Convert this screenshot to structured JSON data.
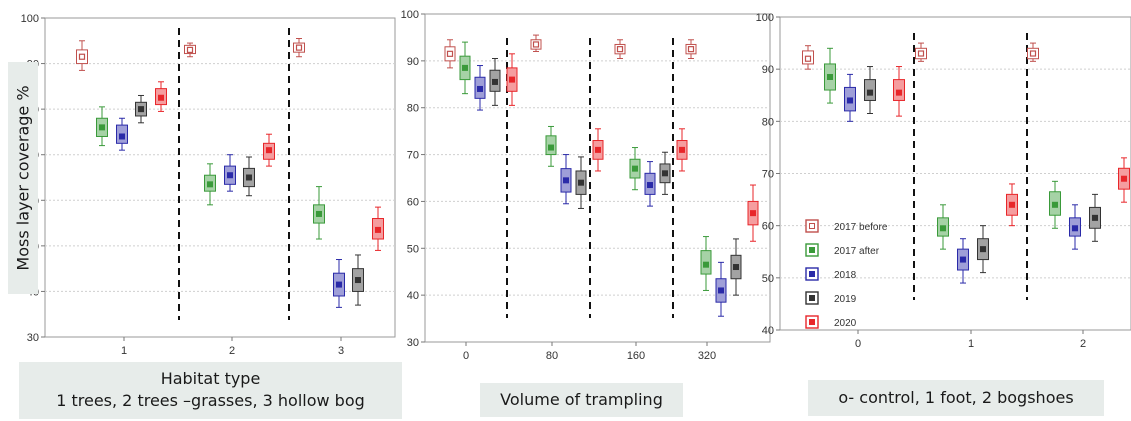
{
  "y_axis_label": "Moss layer coverage %",
  "panel_labels": {
    "habitat_line1": "Habitat type",
    "habitat_line2": "1 trees, 2 trees –grasses, 3 hollow bog",
    "trampling": "Volume of trampling",
    "shoes": "o- control, 1 foot, 2 bogshoes"
  },
  "colors": {
    "2017 before": "#c0504d",
    "2017 after": "#3a9a3a",
    "2018": "#2a2aa8",
    "2019": "#333333",
    "2020": "#e8262a"
  },
  "chart_data": [
    {
      "type": "box",
      "categories": [
        "1",
        "2",
        "3"
      ],
      "ylim": [
        30,
        100
      ],
      "yticks": [
        30,
        40,
        50,
        60,
        70,
        80,
        90,
        100
      ],
      "grid": "horizontal",
      "series": [
        {
          "name": "2017 before",
          "values": [
            {
              "mean": 91.5,
              "q1": 90,
              "q3": 93,
              "lo": 88.5,
              "hi": 95
            },
            {
              "mean": 93,
              "q1": 92.2,
              "q3": 94,
              "lo": 91.5,
              "hi": 94.5
            },
            {
              "mean": 93.5,
              "q1": 92.5,
              "q3": 94.5,
              "lo": 91.5,
              "hi": 95.5
            }
          ]
        },
        {
          "name": "2017 after",
          "values": [
            {
              "mean": 76,
              "q1": 74,
              "q3": 78,
              "lo": 72,
              "hi": 80.5
            },
            {
              "mean": 63.5,
              "q1": 62,
              "q3": 65.5,
              "lo": 59,
              "hi": 68
            },
            {
              "mean": 57,
              "q1": 55,
              "q3": 59,
              "lo": 51.5,
              "hi": 63
            }
          ]
        },
        {
          "name": "2018",
          "values": [
            {
              "mean": 74,
              "q1": 72.5,
              "q3": 76.5,
              "lo": 71,
              "hi": 78
            },
            {
              "mean": 65.5,
              "q1": 63.5,
              "q3": 67.5,
              "lo": 62,
              "hi": 70
            },
            {
              "mean": 41.5,
              "q1": 39,
              "q3": 44,
              "lo": 36.5,
              "hi": 47
            }
          ]
        },
        {
          "name": "2019",
          "values": [
            {
              "mean": 80,
              "q1": 78.5,
              "q3": 81.5,
              "lo": 77,
              "hi": 83
            },
            {
              "mean": 65,
              "q1": 63,
              "q3": 67,
              "lo": 61,
              "hi": 69.5
            },
            {
              "mean": 42.5,
              "q1": 40,
              "q3": 45,
              "lo": 37,
              "hi": 48
            }
          ]
        },
        {
          "name": "2020",
          "values": [
            {
              "mean": 82.5,
              "q1": 81,
              "q3": 84.5,
              "lo": 79.5,
              "hi": 86
            },
            {
              "mean": 71,
              "q1": 69,
              "q3": 72.5,
              "lo": 67.5,
              "hi": 74.5
            },
            {
              "mean": 53.5,
              "q1": 51.5,
              "q3": 56,
              "lo": 49,
              "hi": 58.5
            }
          ]
        }
      ]
    },
    {
      "type": "box",
      "categories": [
        "0",
        "80",
        "160",
        "320"
      ],
      "ylim": [
        30,
        100
      ],
      "yticks": [
        30,
        40,
        50,
        60,
        70,
        80,
        90,
        100
      ],
      "grid": "horizontal",
      "series": [
        {
          "name": "2017 before",
          "values": [
            {
              "mean": 91.5,
              "q1": 90,
              "q3": 93,
              "lo": 88.5,
              "hi": 94.5
            },
            {
              "mean": 93.5,
              "q1": 92.5,
              "q3": 94.5,
              "lo": 92,
              "hi": 95.5
            },
            {
              "mean": 92.5,
              "q1": 91.5,
              "q3": 93.5,
              "lo": 90.5,
              "hi": 94.5
            },
            {
              "mean": 92.5,
              "q1": 91.5,
              "q3": 93.5,
              "lo": 90.5,
              "hi": 94.5
            }
          ]
        },
        {
          "name": "2017 after",
          "values": [
            {
              "mean": 88.5,
              "q1": 86,
              "q3": 91,
              "lo": 83,
              "hi": 94
            },
            {
              "mean": 71.5,
              "q1": 70,
              "q3": 74,
              "lo": 67.5,
              "hi": 76
            },
            {
              "mean": 67,
              "q1": 65,
              "q3": 69,
              "lo": 62.5,
              "hi": 71.5
            },
            {
              "mean": 46.5,
              "q1": 44.5,
              "q3": 49.5,
              "lo": 41,
              "hi": 52.5
            }
          ]
        },
        {
          "name": "2018",
          "values": [
            {
              "mean": 84,
              "q1": 82,
              "q3": 86.5,
              "lo": 79.5,
              "hi": 89
            },
            {
              "mean": 64.5,
              "q1": 62,
              "q3": 67,
              "lo": 59.5,
              "hi": 70
            },
            {
              "mean": 63.5,
              "q1": 61.5,
              "q3": 66,
              "lo": 59,
              "hi": 68.5
            },
            {
              "mean": 41,
              "q1": 38.5,
              "q3": 43.5,
              "lo": 35.5,
              "hi": 47
            }
          ]
        },
        {
          "name": "2019",
          "values": [
            {
              "mean": 85.5,
              "q1": 83.5,
              "q3": 88,
              "lo": 80.5,
              "hi": 90.5
            },
            {
              "mean": 64,
              "q1": 61.5,
              "q3": 66.5,
              "lo": 58.5,
              "hi": 69.5
            },
            {
              "mean": 66,
              "q1": 64,
              "q3": 68,
              "lo": 61.5,
              "hi": 70.5
            },
            {
              "mean": 46,
              "q1": 43.5,
              "q3": 48.5,
              "lo": 40,
              "hi": 52
            }
          ]
        },
        {
          "name": "2020",
          "values": [
            {
              "mean": 86,
              "q1": 83.5,
              "q3": 88.5,
              "lo": 80.5,
              "hi": 91.5
            },
            {
              "mean": 71,
              "q1": 69,
              "q3": 73,
              "lo": 66.5,
              "hi": 75.5
            },
            {
              "mean": 71,
              "q1": 69,
              "q3": 73,
              "lo": 66.5,
              "hi": 75.5
            },
            {
              "mean": 57.5,
              "q1": 55,
              "q3": 60,
              "lo": 51.5,
              "hi": 63.5
            }
          ]
        }
      ]
    },
    {
      "type": "box",
      "categories": [
        "0",
        "1",
        "2"
      ],
      "ylim": [
        40,
        100
      ],
      "yticks": [
        40,
        50,
        60,
        70,
        80,
        90,
        100
      ],
      "grid": "horizontal",
      "legend": "left",
      "series": [
        {
          "name": "2017 before",
          "values": [
            {
              "mean": 92,
              "q1": 91,
              "q3": 93.5,
              "lo": 90,
              "hi": 94.5
            },
            {
              "mean": 93,
              "q1": 92,
              "q3": 94,
              "lo": 91.5,
              "hi": 95
            },
            {
              "mean": 93,
              "q1": 92,
              "q3": 94,
              "lo": 91.5,
              "hi": 95
            }
          ]
        },
        {
          "name": "2017 after",
          "values": [
            {
              "mean": 88.5,
              "q1": 86,
              "q3": 91,
              "lo": 83.5,
              "hi": 94
            },
            {
              "mean": 59.5,
              "q1": 58,
              "q3": 61.5,
              "lo": 55.5,
              "hi": 64
            },
            {
              "mean": 64,
              "q1": 62,
              "q3": 66.5,
              "lo": 59.5,
              "hi": 68.5
            }
          ]
        },
        {
          "name": "2018",
          "values": [
            {
              "mean": 84,
              "q1": 82,
              "q3": 86.5,
              "lo": 80,
              "hi": 89
            },
            {
              "mean": 53.5,
              "q1": 51.5,
              "q3": 55.5,
              "lo": 49,
              "hi": 57.5
            },
            {
              "mean": 59.5,
              "q1": 58,
              "q3": 61.5,
              "lo": 55.5,
              "hi": 64
            }
          ]
        },
        {
          "name": "2019",
          "values": [
            {
              "mean": 85.5,
              "q1": 84,
              "q3": 88,
              "lo": 81.5,
              "hi": 90.5
            },
            {
              "mean": 55.5,
              "q1": 53.5,
              "q3": 57.5,
              "lo": 51,
              "hi": 60
            },
            {
              "mean": 61.5,
              "q1": 59.5,
              "q3": 63.5,
              "lo": 57,
              "hi": 66
            }
          ]
        },
        {
          "name": "2020",
          "values": [
            {
              "mean": 85.5,
              "q1": 84,
              "q3": 88,
              "lo": 81,
              "hi": 90.5
            },
            {
              "mean": 64,
              "q1": 62,
              "q3": 66,
              "lo": 60,
              "hi": 68
            },
            {
              "mean": 69,
              "q1": 67,
              "q3": 71,
              "lo": 64.5,
              "hi": 73
            }
          ]
        }
      ]
    }
  ]
}
